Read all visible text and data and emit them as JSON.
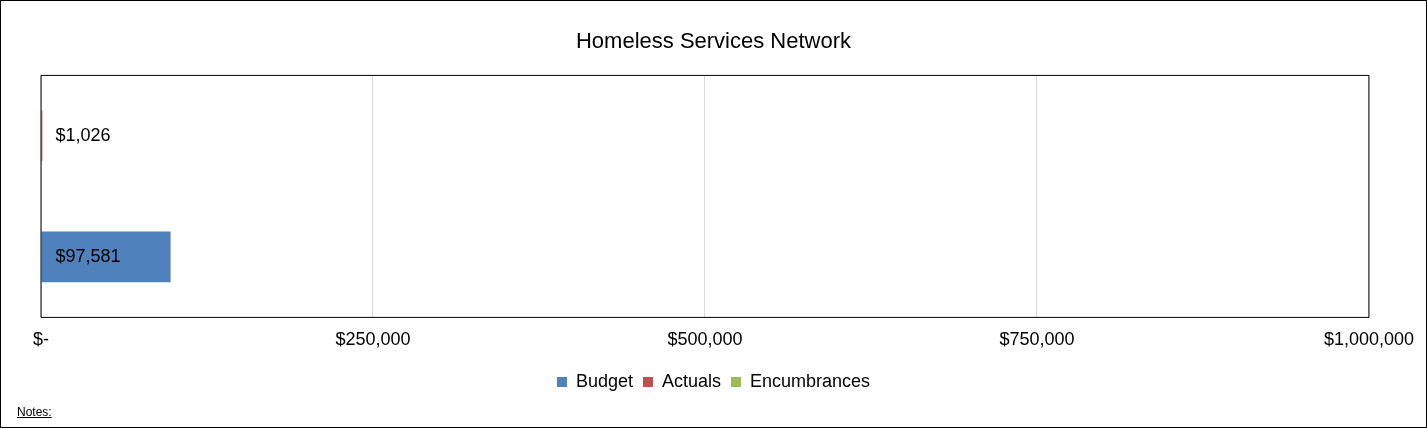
{
  "chart_data": {
    "type": "bar",
    "orientation": "horizontal",
    "title": "Homeless Services Network",
    "categories": [
      null
    ],
    "series": [
      {
        "name": "Budget",
        "color": "#4f81bd",
        "values": [
          97581
        ],
        "value_labels": [
          "$97,581"
        ]
      },
      {
        "name": "Actuals",
        "color": "#c0504d",
        "values": [
          1026
        ],
        "value_labels": [
          "$1,026"
        ]
      },
      {
        "name": "Encumbrances",
        "color": "#9bbb59",
        "values": [
          null
        ],
        "value_labels": [
          null
        ]
      }
    ],
    "xlim": [
      0,
      1000000
    ],
    "xticks": [
      {
        "value": 0,
        "label": "$-"
      },
      {
        "value": 250000,
        "label": "$250,000"
      },
      {
        "value": 500000,
        "label": "$500,000"
      },
      {
        "value": 750000,
        "label": "$750,000"
      },
      {
        "value": 1000000,
        "label": "$1,000,000"
      }
    ],
    "grid": "x",
    "legend": "bottom",
    "annotations": [
      "Notes:"
    ]
  }
}
